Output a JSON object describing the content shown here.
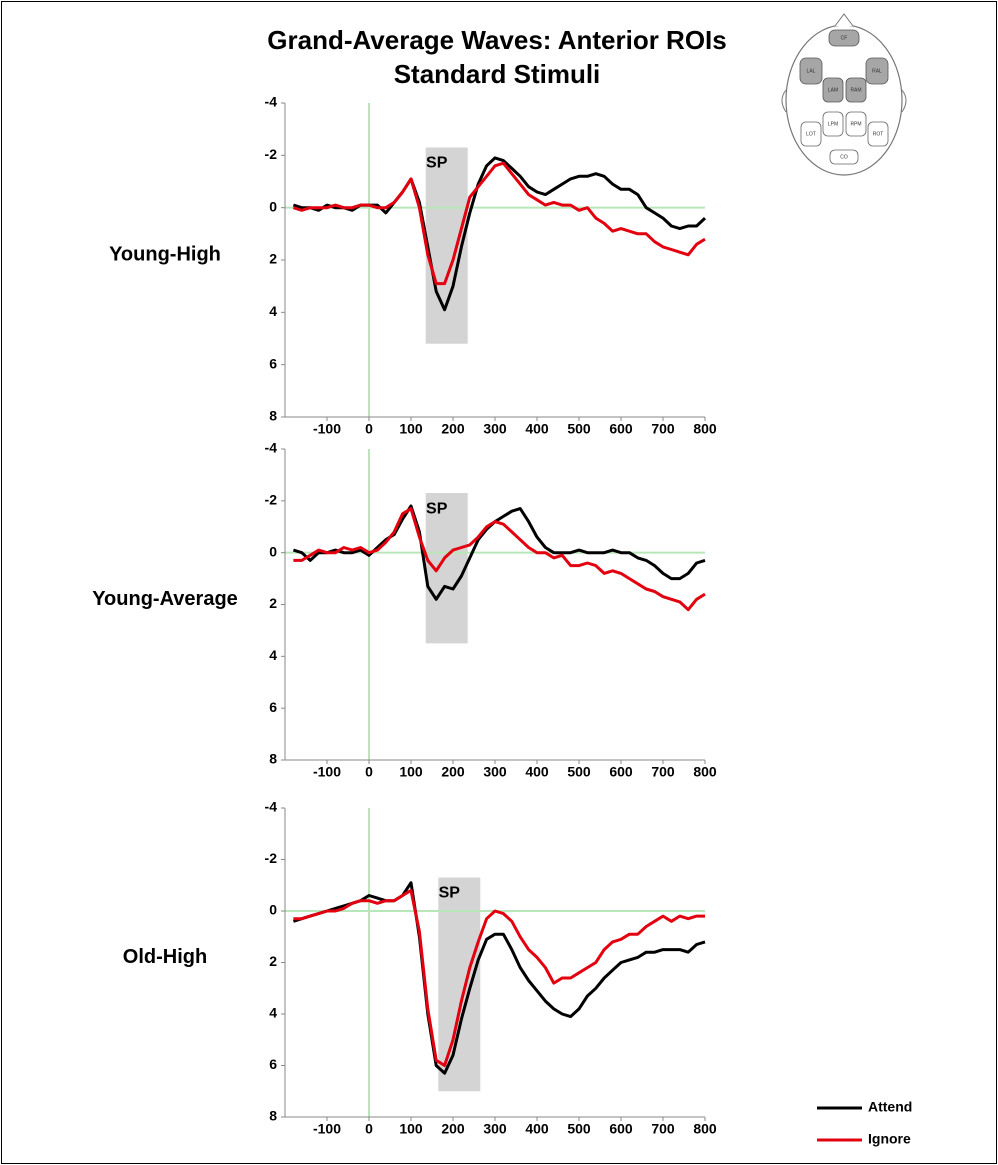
{
  "title": "Grand-Average Waves: Anterior ROIs",
  "subtitle": "Standard Stimuli",
  "head_map_labels": [
    "CF",
    "LAL",
    "RAL",
    "LAM",
    "RAM",
    "LPM",
    "RPM",
    "LOT",
    "ROT",
    "CO"
  ],
  "chart_data": [
    {
      "type": "line",
      "row_label": "Young-High",
      "x": [
        -180,
        -160,
        -140,
        -120,
        -100,
        -80,
        -60,
        -40,
        -20,
        0,
        20,
        40,
        60,
        80,
        100,
        120,
        140,
        160,
        180,
        200,
        220,
        240,
        260,
        280,
        300,
        320,
        340,
        360,
        380,
        400,
        420,
        440,
        460,
        480,
        500,
        520,
        540,
        560,
        580,
        600,
        620,
        640,
        660,
        680,
        700,
        720,
        740,
        760,
        780,
        800
      ],
      "series": [
        {
          "color": "#000000",
          "values": [
            -0.1,
            0,
            0,
            0.1,
            -0.1,
            0,
            0,
            0.1,
            -0.1,
            -0.1,
            -0.1,
            0.2,
            -0.2,
            -0.6,
            -1.1,
            -0.2,
            1.5,
            3.2,
            3.9,
            3.0,
            1.5,
            0.2,
            -0.9,
            -1.6,
            -1.9,
            -1.8,
            -1.5,
            -1.2,
            -0.8,
            -0.6,
            -0.5,
            -0.7,
            -0.9,
            -1.1,
            -1.2,
            -1.2,
            -1.3,
            -1.2,
            -0.9,
            -0.7,
            -0.7,
            -0.5,
            0,
            0.2,
            0.4,
            0.7,
            0.8,
            0.7,
            0.7,
            0.4
          ]
        },
        {
          "color": "#e3000f",
          "values": [
            0,
            0.1,
            0,
            0,
            0,
            -0.1,
            0,
            0,
            -0.1,
            -0.1,
            0,
            0,
            -0.2,
            -0.6,
            -1.1,
            0.0,
            1.8,
            2.9,
            2.9,
            2.0,
            0.8,
            -0.4,
            -0.8,
            -1.2,
            -1.6,
            -1.7,
            -1.3,
            -0.9,
            -0.5,
            -0.3,
            -0.1,
            -0.2,
            -0.1,
            -0.1,
            0.1,
            0,
            0.4,
            0.6,
            0.9,
            0.8,
            0.9,
            1.0,
            1.0,
            1.3,
            1.5,
            1.6,
            1.7,
            1.8,
            1.4,
            1.2
          ]
        }
      ],
      "shaded_region": {
        "label": "SP",
        "x": [
          135,
          235
        ],
        "y": [
          -2.3,
          5.2
        ]
      },
      "xlim": [
        -200,
        800
      ],
      "ylim": [
        8,
        -4
      ],
      "xticks": [
        -100,
        0,
        100,
        200,
        300,
        400,
        500,
        600,
        700,
        800
      ],
      "yticks": [
        -4,
        -2,
        0,
        2,
        4,
        6,
        8
      ],
      "zero_line_color": "#b8e6b8"
    },
    {
      "type": "line",
      "row_label": "Young-Average",
      "x": [
        -180,
        -160,
        -140,
        -120,
        -100,
        -80,
        -60,
        -40,
        -20,
        0,
        20,
        40,
        60,
        80,
        100,
        120,
        140,
        160,
        180,
        200,
        220,
        240,
        260,
        280,
        300,
        320,
        340,
        360,
        380,
        400,
        420,
        440,
        460,
        480,
        500,
        520,
        540,
        560,
        580,
        600,
        620,
        640,
        660,
        680,
        700,
        720,
        740,
        760,
        780,
        800
      ],
      "series": [
        {
          "color": "#000000",
          "values": [
            -0.1,
            0,
            0.3,
            0,
            0,
            -0.1,
            0,
            0,
            -0.1,
            0.1,
            -0.2,
            -0.5,
            -0.7,
            -1.3,
            -1.8,
            -0.8,
            1.3,
            1.8,
            1.3,
            1.4,
            0.9,
            0.2,
            -0.5,
            -0.9,
            -1.2,
            -1.4,
            -1.6,
            -1.7,
            -1.2,
            -0.6,
            -0.2,
            0,
            0,
            0,
            -0.1,
            0,
            0,
            0,
            -0.1,
            0,
            0,
            0.2,
            0.3,
            0.5,
            0.8,
            1.0,
            1.0,
            0.8,
            0.4,
            0.3
          ]
        },
        {
          "color": "#e3000f",
          "values": [
            0.3,
            0.3,
            0.1,
            -0.1,
            0,
            0,
            -0.2,
            -0.1,
            -0.2,
            0,
            -0.1,
            -0.4,
            -0.8,
            -1.5,
            -1.7,
            -0.6,
            0.3,
            0.7,
            0.2,
            -0.1,
            -0.2,
            -0.3,
            -0.6,
            -1.0,
            -1.2,
            -1.1,
            -0.8,
            -0.5,
            -0.2,
            0,
            0,
            0.2,
            0.1,
            0.5,
            0.5,
            0.4,
            0.5,
            0.8,
            0.7,
            0.8,
            1.0,
            1.2,
            1.4,
            1.5,
            1.7,
            1.8,
            1.9,
            2.2,
            1.8,
            1.6
          ]
        }
      ],
      "shaded_region": {
        "label": "SP",
        "x": [
          135,
          235
        ],
        "y": [
          -2.3,
          3.5
        ]
      },
      "xlim": [
        -200,
        800
      ],
      "ylim": [
        8,
        -4
      ],
      "xticks": [
        -100,
        0,
        100,
        200,
        300,
        400,
        500,
        600,
        700,
        800
      ],
      "yticks": [
        -4,
        -2,
        0,
        2,
        4,
        6,
        8
      ],
      "zero_line_color": "#b8e6b8"
    },
    {
      "type": "line",
      "row_label": "Old-High",
      "x": [
        -180,
        -160,
        -140,
        -120,
        -100,
        -80,
        -60,
        -40,
        -20,
        0,
        20,
        40,
        60,
        80,
        100,
        120,
        140,
        160,
        180,
        200,
        220,
        240,
        260,
        280,
        300,
        320,
        340,
        360,
        380,
        400,
        420,
        440,
        460,
        480,
        500,
        520,
        540,
        560,
        580,
        600,
        620,
        640,
        660,
        680,
        700,
        720,
        740,
        760,
        780,
        800
      ],
      "series": [
        {
          "name": "Attend",
          "color": "#000000",
          "values": [
            0.4,
            0.3,
            0.2,
            0.1,
            0,
            -0.1,
            -0.2,
            -0.3,
            -0.4,
            -0.6,
            -0.5,
            -0.4,
            -0.4,
            -0.6,
            -1.1,
            1.0,
            4.0,
            6.0,
            6.3,
            5.6,
            4.2,
            3.0,
            1.9,
            1.1,
            0.9,
            0.9,
            1.5,
            2.2,
            2.7,
            3.1,
            3.5,
            3.8,
            4.0,
            4.1,
            3.8,
            3.3,
            3.0,
            2.6,
            2.3,
            2.0,
            1.9,
            1.8,
            1.6,
            1.6,
            1.5,
            1.5,
            1.5,
            1.6,
            1.3,
            1.2
          ]
        },
        {
          "name": "Ignore",
          "color": "#e3000f",
          "values": [
            0.3,
            0.3,
            0.2,
            0.1,
            0,
            0,
            -0.1,
            -0.3,
            -0.4,
            -0.4,
            -0.3,
            -0.4,
            -0.4,
            -0.6,
            -0.8,
            0.8,
            3.8,
            5.8,
            6.0,
            5.0,
            3.5,
            2.2,
            1.2,
            0.3,
            0,
            0.1,
            0.4,
            1.0,
            1.5,
            1.8,
            2.2,
            2.8,
            2.6,
            2.6,
            2.4,
            2.2,
            2.0,
            1.5,
            1.2,
            1.1,
            0.9,
            0.9,
            0.6,
            0.4,
            0.2,
            0.4,
            0.2,
            0.3,
            0.2,
            0.2
          ]
        }
      ],
      "shaded_region": {
        "label": "SP",
        "x": [
          165,
          265
        ],
        "y": [
          -1.3,
          7.0
        ]
      },
      "xlim": [
        -200,
        800
      ],
      "ylim": [
        8,
        -4
      ],
      "xticks": [
        -100,
        0,
        100,
        200,
        300,
        400,
        500,
        600,
        700,
        800
      ],
      "yticks": [
        -4,
        -2,
        0,
        2,
        4,
        6,
        8
      ],
      "zero_line_color": "#b8e6b8"
    }
  ]
}
